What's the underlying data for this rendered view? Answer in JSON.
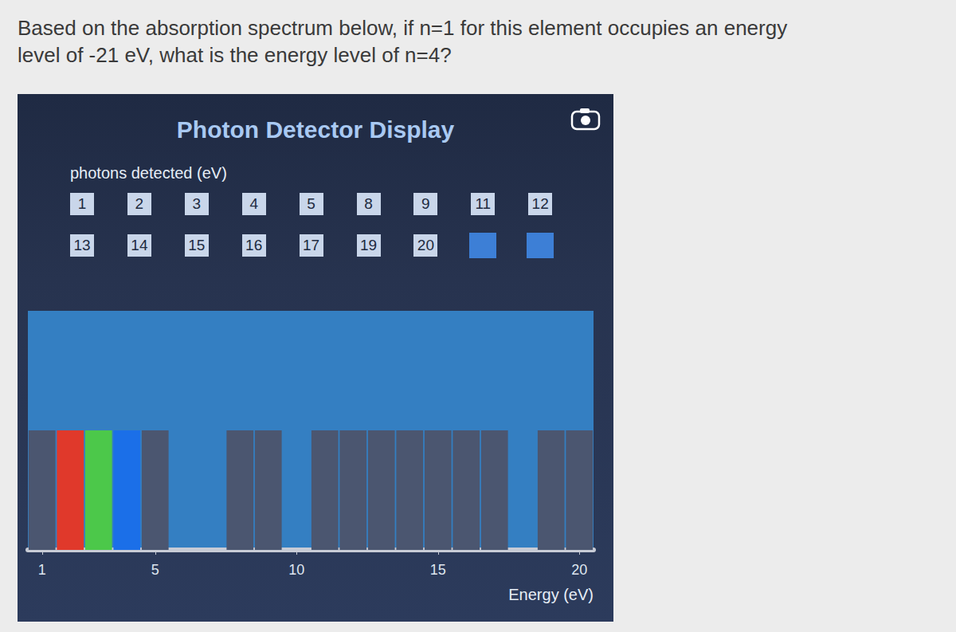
{
  "question": [
    "Based on the absorption spectrum below, if n=1 for this element occupies an energy",
    "level of -21 eV, what is the energy level of n=4?"
  ],
  "display": {
    "title": "Photon Detector Display",
    "label": "photons detected (eV)",
    "photons": [
      1,
      2,
      3,
      4,
      5,
      8,
      9,
      11,
      12,
      13,
      14,
      15,
      16,
      17,
      19,
      20
    ]
  },
  "chart_data": {
    "type": "bar",
    "xlabel": "Energy (eV)",
    "x": [
      1,
      2,
      3,
      4,
      5,
      8,
      9,
      11,
      12,
      13,
      14,
      15,
      16,
      17,
      19,
      20
    ],
    "values": [
      1,
      1,
      1,
      1,
      1,
      1,
      1,
      1,
      1,
      1,
      1,
      1,
      1,
      1,
      1,
      1
    ],
    "colors": [
      "#4b5670",
      "#e0392b",
      "#4cc84a",
      "#1b6fe8",
      "#4b5670",
      "#4b5670",
      "#4b5670",
      "#4b5670",
      "#4b5670",
      "#4b5670",
      "#4b5670",
      "#4b5670",
      "#4b5670",
      "#4b5670",
      "#4b5670",
      "#4b5670"
    ],
    "xlim": [
      0.5,
      20.5
    ],
    "xticks": [
      1,
      5,
      10,
      15,
      20
    ],
    "ylim": [
      0,
      2
    ],
    "grid": false,
    "tick_labels": "x"
  }
}
